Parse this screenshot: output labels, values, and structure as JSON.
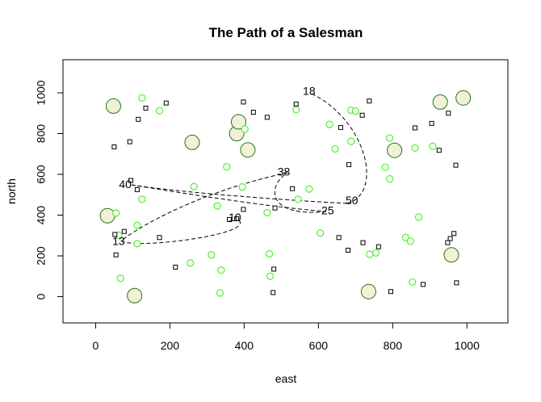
{
  "chart_data": {
    "type": "scatter",
    "title": "The Path of a Salesman",
    "xlabel": "east",
    "ylabel": "north",
    "xlim": [
      -80,
      1100
    ],
    "ylim": [
      -130,
      1140
    ],
    "x_ticks": [
      0,
      200,
      400,
      600,
      800,
      1000
    ],
    "x_tick_labels": [
      "0",
      "200",
      "400",
      "600",
      "800",
      "1000"
    ],
    "y_ticks": [
      0,
      200,
      400,
      600,
      800,
      1000
    ],
    "y_tick_labels": [
      "0",
      "200",
      "400",
      "600",
      "800",
      "1000"
    ],
    "colors": {
      "large_fill": "#f3f0d8",
      "large_stroke": "#1a7a1a",
      "green": "#55ee33",
      "square": "#000000",
      "path": "#000000"
    },
    "large_circles": [
      {
        "x": 48,
        "y": 935
      },
      {
        "x": 32,
        "y": 397
      },
      {
        "x": 105,
        "y": 5
      },
      {
        "x": 260,
        "y": 757
      },
      {
        "x": 380,
        "y": 800
      },
      {
        "x": 385,
        "y": 858
      },
      {
        "x": 410,
        "y": 720
      },
      {
        "x": 735,
        "y": 25
      },
      {
        "x": 805,
        "y": 718
      },
      {
        "x": 928,
        "y": 955
      },
      {
        "x": 958,
        "y": 205
      },
      {
        "x": 990,
        "y": 975
      }
    ],
    "green_circles": [
      {
        "x": 125,
        "y": 975
      },
      {
        "x": 172,
        "y": 912
      },
      {
        "x": 402,
        "y": 822
      },
      {
        "x": 353,
        "y": 637
      },
      {
        "x": 265,
        "y": 540
      },
      {
        "x": 395,
        "y": 538
      },
      {
        "x": 125,
        "y": 478
      },
      {
        "x": 328,
        "y": 445
      },
      {
        "x": 55,
        "y": 410
      },
      {
        "x": 112,
        "y": 350
      },
      {
        "x": 62,
        "y": 302
      },
      {
        "x": 112,
        "y": 260
      },
      {
        "x": 67,
        "y": 90
      },
      {
        "x": 255,
        "y": 165
      },
      {
        "x": 312,
        "y": 205
      },
      {
        "x": 338,
        "y": 130
      },
      {
        "x": 335,
        "y": 18
      },
      {
        "x": 468,
        "y": 210
      },
      {
        "x": 470,
        "y": 100
      },
      {
        "x": 462,
        "y": 412
      },
      {
        "x": 545,
        "y": 478
      },
      {
        "x": 575,
        "y": 528
      },
      {
        "x": 540,
        "y": 918
      },
      {
        "x": 630,
        "y": 845
      },
      {
        "x": 645,
        "y": 725
      },
      {
        "x": 688,
        "y": 915
      },
      {
        "x": 700,
        "y": 910
      },
      {
        "x": 688,
        "y": 762
      },
      {
        "x": 780,
        "y": 635
      },
      {
        "x": 792,
        "y": 778
      },
      {
        "x": 792,
        "y": 578
      },
      {
        "x": 860,
        "y": 730
      },
      {
        "x": 908,
        "y": 738
      },
      {
        "x": 870,
        "y": 390
      },
      {
        "x": 605,
        "y": 312
      },
      {
        "x": 738,
        "y": 208
      },
      {
        "x": 755,
        "y": 215
      },
      {
        "x": 835,
        "y": 290
      },
      {
        "x": 848,
        "y": 272
      },
      {
        "x": 853,
        "y": 72
      }
    ],
    "squares": [
      {
        "x": 135,
        "y": 925
      },
      {
        "x": 190,
        "y": 950
      },
      {
        "x": 115,
        "y": 870
      },
      {
        "x": 50,
        "y": 735
      },
      {
        "x": 92,
        "y": 760
      },
      {
        "x": 398,
        "y": 955
      },
      {
        "x": 425,
        "y": 905
      },
      {
        "x": 462,
        "y": 880
      },
      {
        "x": 540,
        "y": 945
      },
      {
        "x": 660,
        "y": 830
      },
      {
        "x": 718,
        "y": 890
      },
      {
        "x": 737,
        "y": 960
      },
      {
        "x": 682,
        "y": 648
      },
      {
        "x": 860,
        "y": 828
      },
      {
        "x": 905,
        "y": 850
      },
      {
        "x": 925,
        "y": 718
      },
      {
        "x": 950,
        "y": 900
      },
      {
        "x": 970,
        "y": 645
      },
      {
        "x": 95,
        "y": 570
      },
      {
        "x": 112,
        "y": 525
      },
      {
        "x": 530,
        "y": 530
      },
      {
        "x": 398,
        "y": 428
      },
      {
        "x": 483,
        "y": 435
      },
      {
        "x": 360,
        "y": 378
      },
      {
        "x": 380,
        "y": 382
      },
      {
        "x": 77,
        "y": 320
      },
      {
        "x": 52,
        "y": 305
      },
      {
        "x": 172,
        "y": 290
      },
      {
        "x": 55,
        "y": 205
      },
      {
        "x": 215,
        "y": 145
      },
      {
        "x": 480,
        "y": 135
      },
      {
        "x": 478,
        "y": 20
      },
      {
        "x": 655,
        "y": 290
      },
      {
        "x": 680,
        "y": 228
      },
      {
        "x": 720,
        "y": 265
      },
      {
        "x": 762,
        "y": 245
      },
      {
        "x": 795,
        "y": 25
      },
      {
        "x": 882,
        "y": 60
      },
      {
        "x": 948,
        "y": 265
      },
      {
        "x": 955,
        "y": 285
      },
      {
        "x": 965,
        "y": 310
      },
      {
        "x": 972,
        "y": 68
      }
    ],
    "path_labels": [
      {
        "text": "18",
        "x": 575,
        "y": 1005
      },
      {
        "text": "38",
        "x": 507,
        "y": 608
      },
      {
        "text": "40",
        "x": 80,
        "y": 548
      },
      {
        "text": "50",
        "x": 690,
        "y": 468
      },
      {
        "text": "25",
        "x": 625,
        "y": 418
      },
      {
        "text": "10",
        "x": 375,
        "y": 385
      },
      {
        "text": "13",
        "x": 62,
        "y": 268
      }
    ]
  }
}
